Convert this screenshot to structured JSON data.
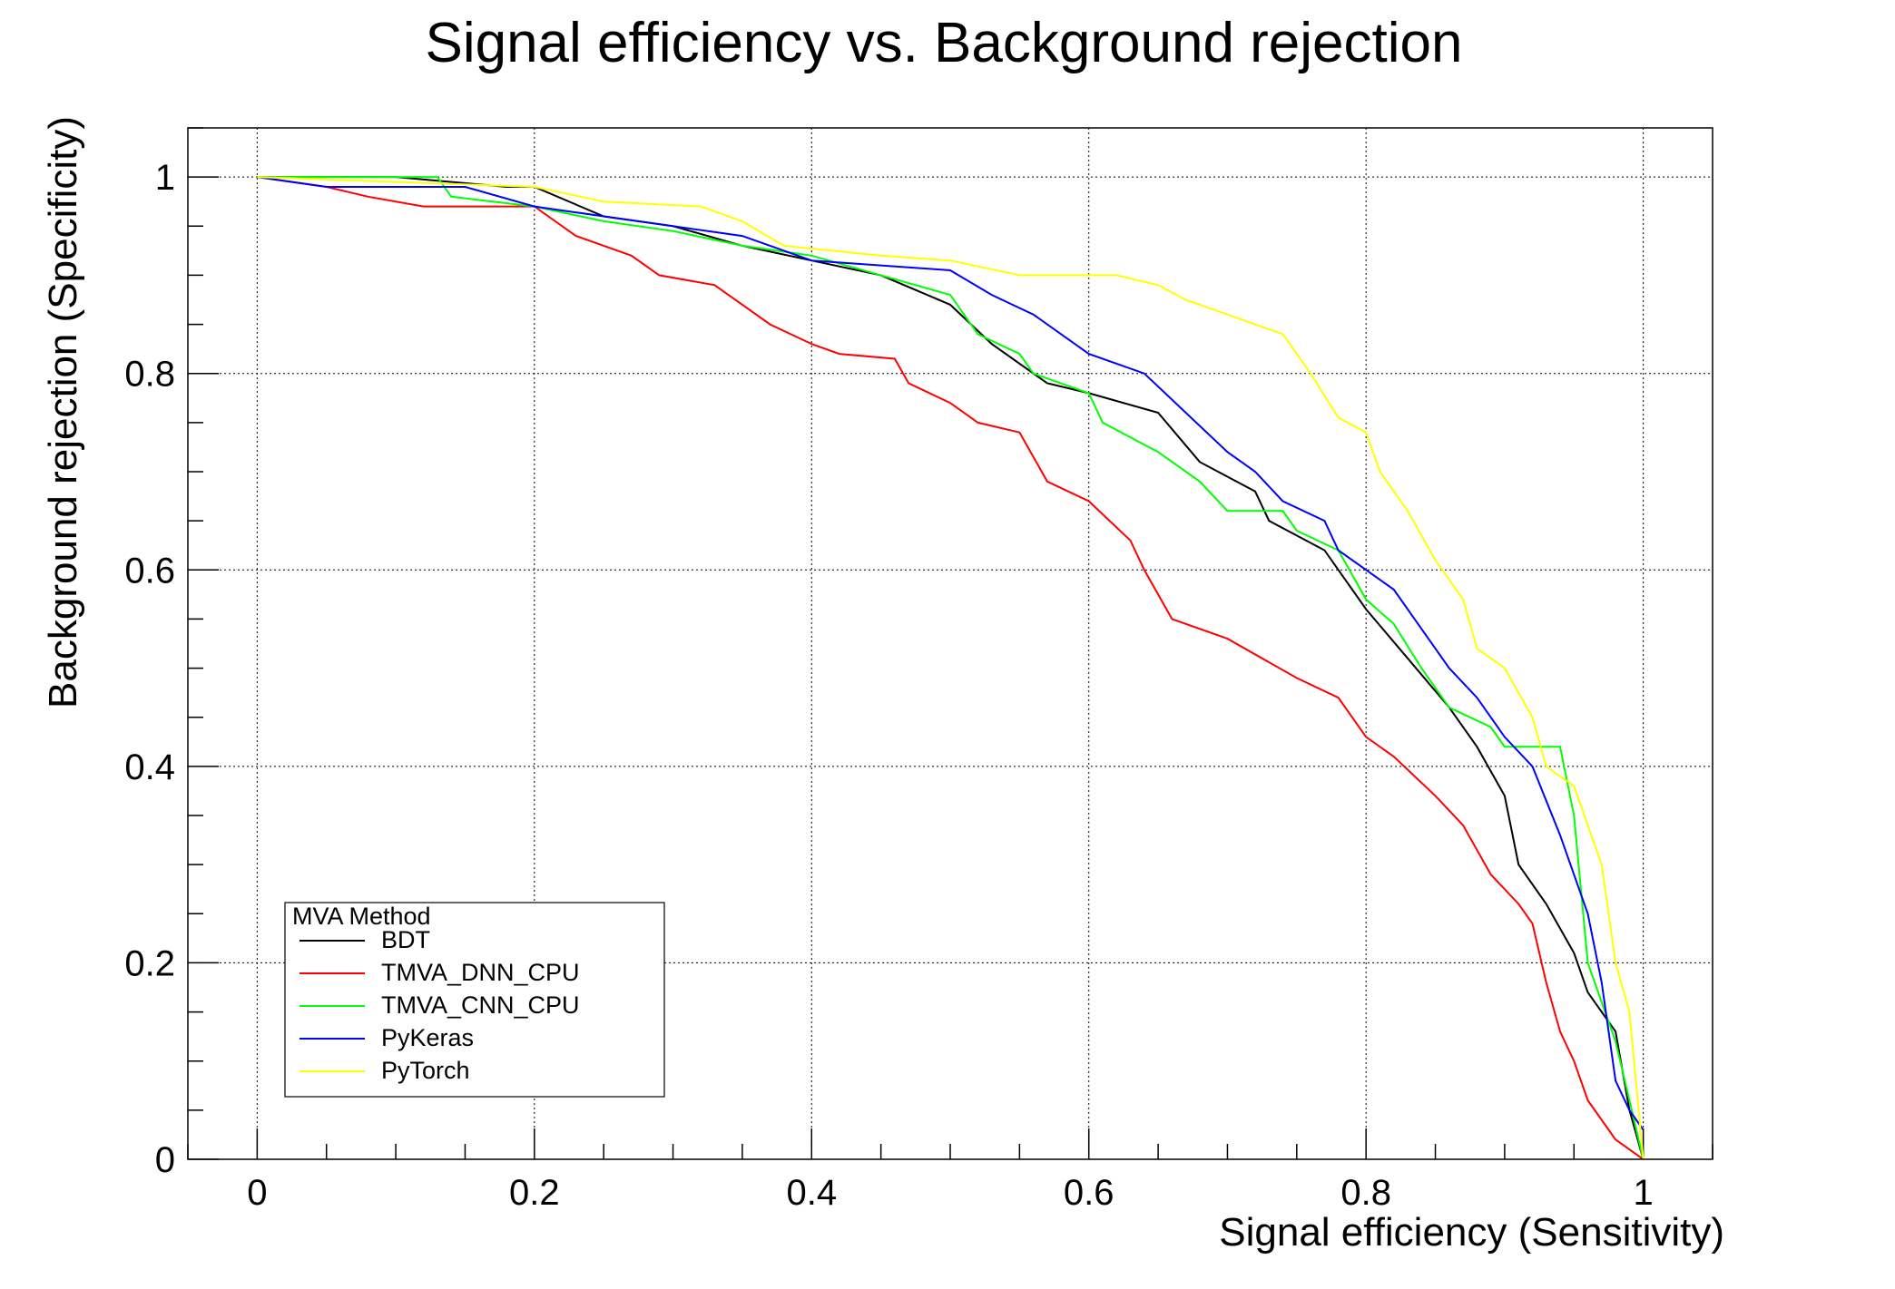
{
  "chart_data": {
    "type": "line",
    "title": "Signal efficiency vs. Background rejection",
    "xlabel": "Signal efficiency (Sensitivity)",
    "ylabel": "Background rejection (Specificity)",
    "xlim": [
      -0.05,
      1.05
    ],
    "ylim": [
      0,
      1.05
    ],
    "xticks": [
      "0",
      "0.2",
      "0.4",
      "0.6",
      "0.8",
      "1"
    ],
    "yticks": [
      "0",
      "0.2",
      "0.4",
      "0.6",
      "0.8",
      "1"
    ],
    "grid": true,
    "legend": {
      "title": "MVA Method",
      "placement": "bottom-left"
    },
    "series": [
      {
        "name": "BDT",
        "color": "#000000",
        "points": [
          [
            0,
            1
          ],
          [
            0.1,
            1
          ],
          [
            0.18,
            0.99
          ],
          [
            0.2,
            0.99
          ],
          [
            0.25,
            0.96
          ],
          [
            0.3,
            0.95
          ],
          [
            0.35,
            0.93
          ],
          [
            0.4,
            0.915
          ],
          [
            0.45,
            0.9
          ],
          [
            0.5,
            0.87
          ],
          [
            0.53,
            0.83
          ],
          [
            0.57,
            0.79
          ],
          [
            0.6,
            0.78
          ],
          [
            0.65,
            0.76
          ],
          [
            0.68,
            0.71
          ],
          [
            0.72,
            0.68
          ],
          [
            0.73,
            0.65
          ],
          [
            0.77,
            0.62
          ],
          [
            0.8,
            0.56
          ],
          [
            0.83,
            0.51
          ],
          [
            0.86,
            0.46
          ],
          [
            0.88,
            0.42
          ],
          [
            0.9,
            0.37
          ],
          [
            0.91,
            0.3
          ],
          [
            0.93,
            0.26
          ],
          [
            0.95,
            0.21
          ],
          [
            0.96,
            0.17
          ],
          [
            0.98,
            0.13
          ],
          [
            0.99,
            0.05
          ],
          [
            1,
            0
          ]
        ]
      },
      {
        "name": "TMVA_DNN_CPU",
        "color": "#ff0000",
        "points": [
          [
            0,
            1
          ],
          [
            0.05,
            0.99
          ],
          [
            0.08,
            0.98
          ],
          [
            0.12,
            0.97
          ],
          [
            0.2,
            0.97
          ],
          [
            0.23,
            0.94
          ],
          [
            0.27,
            0.92
          ],
          [
            0.29,
            0.9
          ],
          [
            0.33,
            0.89
          ],
          [
            0.37,
            0.85
          ],
          [
            0.4,
            0.83
          ],
          [
            0.42,
            0.82
          ],
          [
            0.46,
            0.815
          ],
          [
            0.47,
            0.79
          ],
          [
            0.5,
            0.77
          ],
          [
            0.52,
            0.75
          ],
          [
            0.55,
            0.74
          ],
          [
            0.57,
            0.69
          ],
          [
            0.6,
            0.67
          ],
          [
            0.63,
            0.63
          ],
          [
            0.64,
            0.6
          ],
          [
            0.66,
            0.55
          ],
          [
            0.7,
            0.53
          ],
          [
            0.75,
            0.49
          ],
          [
            0.78,
            0.47
          ],
          [
            0.8,
            0.43
          ],
          [
            0.82,
            0.41
          ],
          [
            0.85,
            0.37
          ],
          [
            0.87,
            0.34
          ],
          [
            0.89,
            0.29
          ],
          [
            0.91,
            0.26
          ],
          [
            0.92,
            0.24
          ],
          [
            0.93,
            0.18
          ],
          [
            0.94,
            0.13
          ],
          [
            0.95,
            0.1
          ],
          [
            0.96,
            0.06
          ],
          [
            0.98,
            0.02
          ],
          [
            0.99,
            0.01
          ],
          [
            1,
            0
          ]
        ]
      },
      {
        "name": "TMVA_CNN_CPU",
        "color": "#00ff00",
        "points": [
          [
            0,
            1
          ],
          [
            0.13,
            1
          ],
          [
            0.14,
            0.98
          ],
          [
            0.2,
            0.97
          ],
          [
            0.25,
            0.955
          ],
          [
            0.3,
            0.945
          ],
          [
            0.35,
            0.93
          ],
          [
            0.4,
            0.92
          ],
          [
            0.45,
            0.9
          ],
          [
            0.5,
            0.88
          ],
          [
            0.52,
            0.84
          ],
          [
            0.55,
            0.82
          ],
          [
            0.56,
            0.8
          ],
          [
            0.6,
            0.78
          ],
          [
            0.61,
            0.75
          ],
          [
            0.65,
            0.72
          ],
          [
            0.68,
            0.69
          ],
          [
            0.7,
            0.66
          ],
          [
            0.74,
            0.66
          ],
          [
            0.75,
            0.64
          ],
          [
            0.78,
            0.62
          ],
          [
            0.8,
            0.57
          ],
          [
            0.82,
            0.545
          ],
          [
            0.84,
            0.5
          ],
          [
            0.86,
            0.46
          ],
          [
            0.89,
            0.44
          ],
          [
            0.9,
            0.42
          ],
          [
            0.94,
            0.42
          ],
          [
            0.95,
            0.35
          ],
          [
            0.96,
            0.2
          ],
          [
            0.98,
            0.12
          ],
          [
            0.99,
            0.06
          ],
          [
            1,
            0
          ]
        ]
      },
      {
        "name": "PyKeras",
        "color": "#0000ff",
        "points": [
          [
            0,
            1
          ],
          [
            0.05,
            0.99
          ],
          [
            0.15,
            0.99
          ],
          [
            0.2,
            0.97
          ],
          [
            0.25,
            0.96
          ],
          [
            0.3,
            0.95
          ],
          [
            0.35,
            0.94
          ],
          [
            0.4,
            0.915
          ],
          [
            0.5,
            0.905
          ],
          [
            0.53,
            0.88
          ],
          [
            0.56,
            0.86
          ],
          [
            0.58,
            0.84
          ],
          [
            0.6,
            0.82
          ],
          [
            0.64,
            0.8
          ],
          [
            0.67,
            0.76
          ],
          [
            0.7,
            0.72
          ],
          [
            0.72,
            0.7
          ],
          [
            0.74,
            0.67
          ],
          [
            0.77,
            0.65
          ],
          [
            0.78,
            0.62
          ],
          [
            0.82,
            0.58
          ],
          [
            0.84,
            0.54
          ],
          [
            0.86,
            0.5
          ],
          [
            0.88,
            0.47
          ],
          [
            0.9,
            0.43
          ],
          [
            0.92,
            0.4
          ],
          [
            0.94,
            0.33
          ],
          [
            0.96,
            0.25
          ],
          [
            0.97,
            0.18
          ],
          [
            0.98,
            0.08
          ],
          [
            0.99,
            0.05
          ],
          [
            1,
            0.03
          ]
        ]
      },
      {
        "name": "PyTorch",
        "color": "#ffff00",
        "points": [
          [
            0,
            1
          ],
          [
            0.2,
            0.99
          ],
          [
            0.25,
            0.975
          ],
          [
            0.32,
            0.97
          ],
          [
            0.35,
            0.955
          ],
          [
            0.38,
            0.93
          ],
          [
            0.45,
            0.92
          ],
          [
            0.5,
            0.915
          ],
          [
            0.55,
            0.9
          ],
          [
            0.62,
            0.9
          ],
          [
            0.65,
            0.89
          ],
          [
            0.67,
            0.875
          ],
          [
            0.7,
            0.86
          ],
          [
            0.74,
            0.84
          ],
          [
            0.76,
            0.8
          ],
          [
            0.78,
            0.755
          ],
          [
            0.8,
            0.74
          ],
          [
            0.81,
            0.7
          ],
          [
            0.83,
            0.66
          ],
          [
            0.85,
            0.61
          ],
          [
            0.87,
            0.57
          ],
          [
            0.88,
            0.52
          ],
          [
            0.9,
            0.5
          ],
          [
            0.92,
            0.45
          ],
          [
            0.93,
            0.4
          ],
          [
            0.95,
            0.38
          ],
          [
            0.97,
            0.3
          ],
          [
            0.98,
            0.2
          ],
          [
            0.99,
            0.15
          ],
          [
            1,
            0
          ]
        ]
      }
    ]
  }
}
